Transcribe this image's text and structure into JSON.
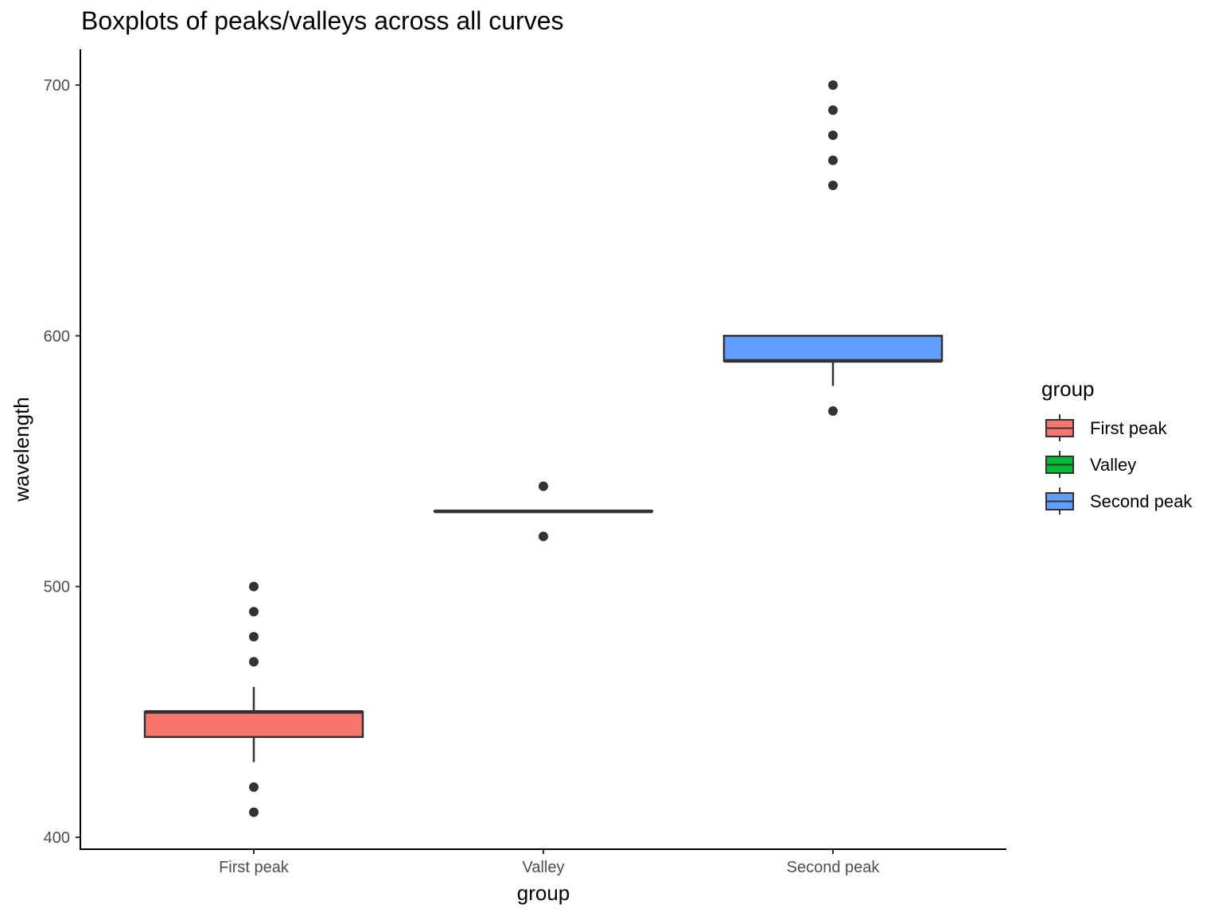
{
  "chart_data": {
    "type": "boxplot",
    "title": "Boxplots of peaks/valleys across all curves",
    "xlabel": "group",
    "ylabel": "wavelength",
    "categories": [
      "First peak",
      "Valley",
      "Second peak"
    ],
    "ylim": [
      395,
      714
    ],
    "y_ticks": [
      400,
      500,
      600,
      700
    ],
    "grid": false,
    "legend": {
      "title": "group",
      "position": "right"
    },
    "series": [
      {
        "name": "First peak",
        "color": "#F8766D",
        "whisker_low": 430,
        "q1": 440,
        "median": 450,
        "q3": 450,
        "whisker_high": 460,
        "outliers": [
          410,
          420,
          470,
          480,
          490,
          500
        ]
      },
      {
        "name": "Valley",
        "color": "#00BA38",
        "whisker_low": 530,
        "q1": 530,
        "median": 530,
        "q3": 530,
        "whisker_high": 530,
        "outliers": [
          520,
          540
        ]
      },
      {
        "name": "Second peak",
        "color": "#619CFF",
        "whisker_low": 580,
        "q1": 590,
        "median": 590,
        "q3": 600,
        "whisker_high": 600,
        "outliers": [
          570,
          660,
          670,
          680,
          690,
          700
        ]
      }
    ]
  }
}
